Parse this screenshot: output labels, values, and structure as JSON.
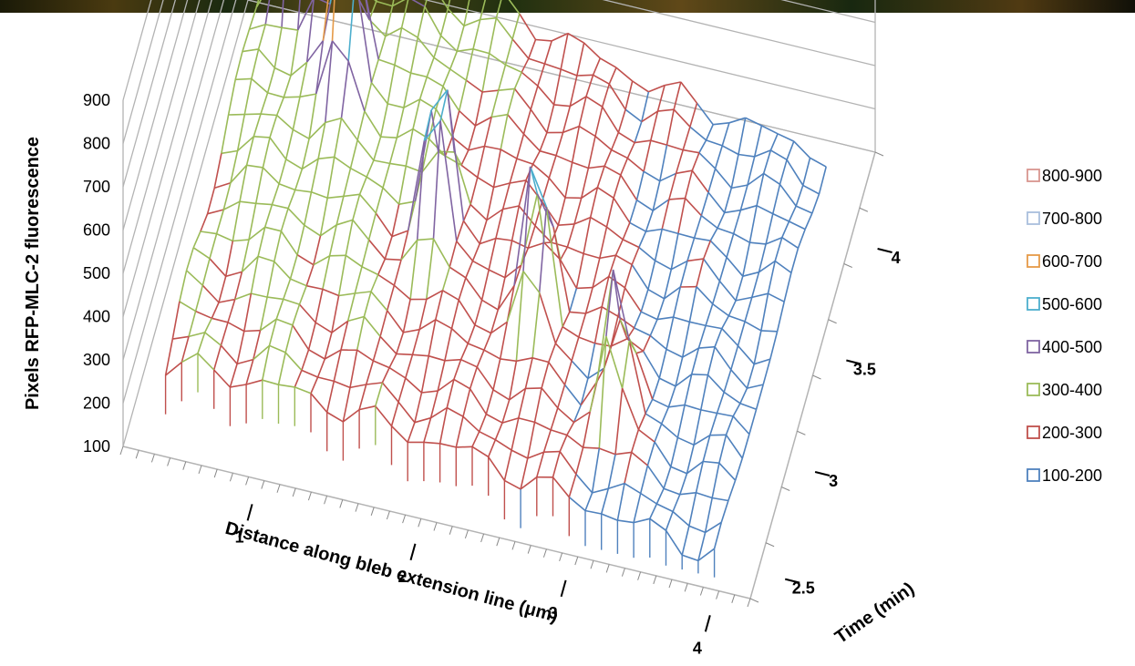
{
  "chart_data": {
    "type": "surface",
    "ylabel": "Pixels RFP-MLC-2 fluorescence",
    "xlabel": "Distance along bleb extension line (μm)",
    "zlabel": "Time (min)",
    "z_ticks": [
      "100",
      "200",
      "300",
      "400",
      "500",
      "600",
      "700",
      "800",
      "900"
    ],
    "x_ticks": [
      "1",
      "2",
      "3",
      "4"
    ],
    "t_ticks": [
      "2.5",
      "3",
      "3.5",
      "4"
    ],
    "zlim": [
      100,
      900
    ],
    "grid": true,
    "legend_position": "right",
    "bands": [
      {
        "label": "800-900",
        "color": "#d9968f"
      },
      {
        "label": "700-800",
        "color": "#a9bfdc"
      },
      {
        "label": "600-700",
        "color": "#e59a48"
      },
      {
        "label": "500-600",
        "color": "#4daecd"
      },
      {
        "label": "400-500",
        "color": "#8064a2"
      },
      {
        "label": "300-400",
        "color": "#9bbb59"
      },
      {
        "label": "200-300",
        "color": "#c0504d"
      },
      {
        "label": "100-200",
        "color": "#4f81bd"
      }
    ],
    "surface_peaks": [
      {
        "distance": 0.9,
        "time": 3.9,
        "value": 880
      },
      {
        "distance": 1.1,
        "time": 3.85,
        "value": 920
      },
      {
        "distance": 1.35,
        "time": 3.6,
        "value": 840
      },
      {
        "distance": 2.1,
        "time": 3.2,
        "value": 700
      },
      {
        "distance": 2.8,
        "time": 3.05,
        "value": 650
      },
      {
        "distance": 3.4,
        "time": 2.8,
        "value": 540
      }
    ]
  }
}
